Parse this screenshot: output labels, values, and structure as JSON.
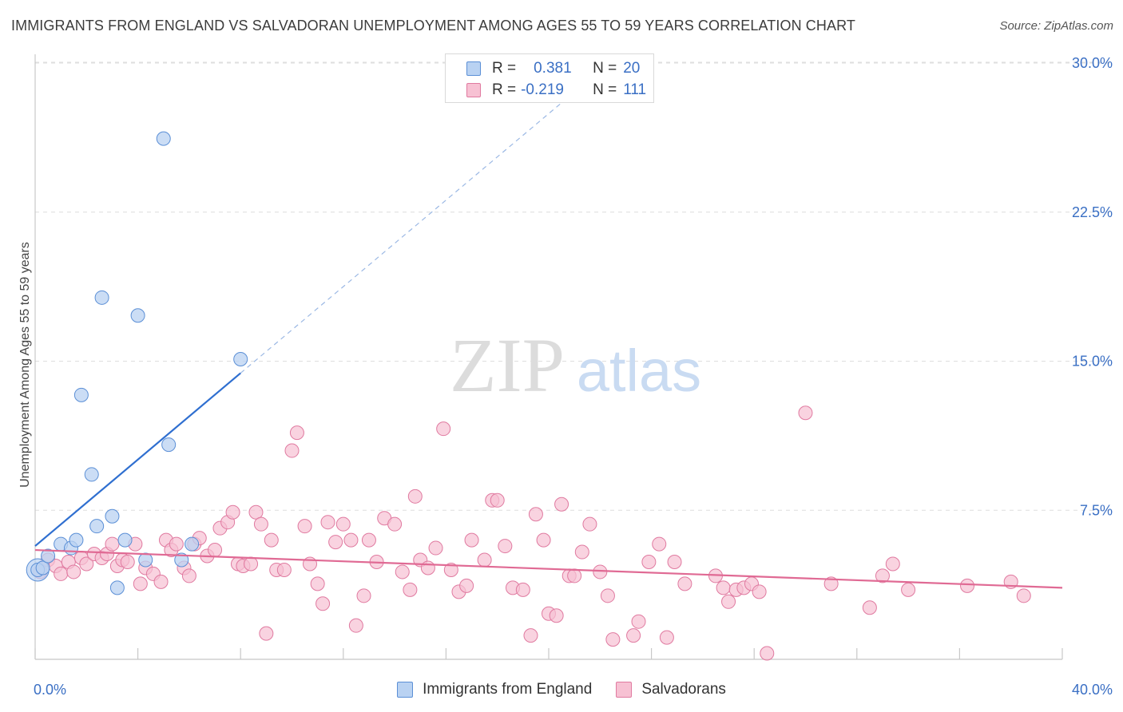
{
  "title": "IMMIGRANTS FROM ENGLAND VS SALVADORAN UNEMPLOYMENT AMONG AGES 55 TO 59 YEARS CORRELATION CHART",
  "source": "Source: ZipAtlas.com",
  "watermark": {
    "zip": "ZIP",
    "atlas": "atlas"
  },
  "legend": {
    "rows": [
      {
        "r_label": "R =",
        "r_value": "0.381",
        "n_label": "N =",
        "n_value": "20"
      },
      {
        "r_label": "R =",
        "r_value": "-0.219",
        "n_label": "N =",
        "n_value": "111"
      }
    ]
  },
  "chart_data": {
    "type": "scatter",
    "xlabel": "",
    "ylabel": "Unemployment Among Ages 55 to 59 years",
    "xlim": [
      0,
      40
    ],
    "ylim": [
      0,
      31
    ],
    "x_tick_labels": [
      "0.0%",
      "40.0%"
    ],
    "y_ticks": [
      7.5,
      15,
      22.5,
      30
    ],
    "y_tick_labels": [
      "7.5%",
      "15.0%",
      "22.5%",
      "30.0%"
    ],
    "grid": "horizontal dashed",
    "legend_position": "bottom",
    "series": [
      {
        "name": "Immigrants from England",
        "color": "#5b8fd6",
        "fill": "#b9d2f2",
        "points": [
          [
            0.1,
            4.5
          ],
          [
            0.3,
            4.6
          ],
          [
            0.5,
            5.2
          ],
          [
            1.0,
            5.8
          ],
          [
            1.4,
            5.6
          ],
          [
            1.6,
            6.0
          ],
          [
            1.8,
            13.3
          ],
          [
            2.2,
            9.3
          ],
          [
            2.4,
            6.7
          ],
          [
            2.6,
            18.2
          ],
          [
            3.0,
            7.2
          ],
          [
            3.2,
            3.6
          ],
          [
            3.5,
            6.0
          ],
          [
            4.0,
            17.3
          ],
          [
            4.3,
            5.0
          ],
          [
            5.0,
            26.2
          ],
          [
            5.2,
            10.8
          ],
          [
            5.7,
            5.0
          ],
          [
            6.1,
            5.8
          ],
          [
            8.0,
            15.1
          ]
        ],
        "trend": {
          "x0": 0,
          "y0": 5.7,
          "x1": 8.0,
          "y1": 14.4,
          "dash_to_x": 20.5,
          "dash_to_y": 28.0
        }
      },
      {
        "name": "Salvadorans",
        "color": "#e07aa0",
        "fill": "#f7c1d3",
        "points": [
          [
            0.2,
            4.4
          ],
          [
            0.5,
            5.0
          ],
          [
            0.8,
            4.7
          ],
          [
            1.0,
            4.3
          ],
          [
            1.3,
            4.9
          ],
          [
            1.5,
            4.4
          ],
          [
            1.8,
            5.1
          ],
          [
            2.0,
            4.8
          ],
          [
            2.3,
            5.3
          ],
          [
            2.6,
            5.1
          ],
          [
            2.8,
            5.3
          ],
          [
            3.0,
            5.8
          ],
          [
            3.2,
            4.7
          ],
          [
            3.4,
            5.0
          ],
          [
            3.6,
            4.9
          ],
          [
            3.9,
            5.8
          ],
          [
            4.1,
            3.8
          ],
          [
            4.3,
            4.6
          ],
          [
            4.6,
            4.3
          ],
          [
            4.9,
            3.9
          ],
          [
            5.1,
            6.0
          ],
          [
            5.3,
            5.5
          ],
          [
            5.5,
            5.8
          ],
          [
            5.8,
            4.6
          ],
          [
            6.0,
            4.2
          ],
          [
            6.2,
            5.8
          ],
          [
            6.4,
            6.1
          ],
          [
            6.7,
            5.2
          ],
          [
            7.0,
            5.5
          ],
          [
            7.2,
            6.6
          ],
          [
            7.5,
            6.9
          ],
          [
            7.7,
            7.4
          ],
          [
            7.9,
            4.8
          ],
          [
            8.1,
            4.7
          ],
          [
            8.4,
            4.8
          ],
          [
            8.6,
            7.4
          ],
          [
            8.8,
            6.8
          ],
          [
            9.0,
            1.3
          ],
          [
            9.2,
            6.0
          ],
          [
            9.4,
            4.5
          ],
          [
            9.7,
            4.5
          ],
          [
            10.0,
            10.5
          ],
          [
            10.2,
            11.4
          ],
          [
            10.5,
            6.7
          ],
          [
            10.7,
            4.8
          ],
          [
            11.0,
            3.8
          ],
          [
            11.2,
            2.8
          ],
          [
            11.4,
            6.9
          ],
          [
            11.7,
            5.9
          ],
          [
            12.0,
            6.8
          ],
          [
            12.3,
            6.0
          ],
          [
            12.5,
            1.7
          ],
          [
            12.8,
            3.2
          ],
          [
            13.0,
            6.0
          ],
          [
            13.3,
            4.9
          ],
          [
            13.6,
            7.1
          ],
          [
            14.0,
            6.8
          ],
          [
            14.3,
            4.4
          ],
          [
            14.6,
            3.5
          ],
          [
            14.8,
            8.2
          ],
          [
            15.0,
            5.0
          ],
          [
            15.3,
            4.6
          ],
          [
            15.6,
            5.6
          ],
          [
            15.9,
            11.6
          ],
          [
            16.2,
            4.5
          ],
          [
            16.5,
            3.4
          ],
          [
            16.8,
            3.7
          ],
          [
            17.0,
            6.0
          ],
          [
            17.5,
            5.0
          ],
          [
            17.8,
            8.0
          ],
          [
            18.0,
            8.0
          ],
          [
            18.3,
            5.7
          ],
          [
            18.6,
            3.6
          ],
          [
            19.0,
            3.5
          ],
          [
            19.3,
            1.2
          ],
          [
            19.5,
            7.3
          ],
          [
            19.8,
            6.0
          ],
          [
            20.0,
            2.3
          ],
          [
            20.3,
            2.2
          ],
          [
            20.5,
            7.8
          ],
          [
            20.8,
            4.2
          ],
          [
            21.0,
            4.2
          ],
          [
            21.3,
            5.4
          ],
          [
            21.6,
            6.8
          ],
          [
            22.0,
            4.4
          ],
          [
            22.3,
            3.2
          ],
          [
            22.5,
            1.0
          ],
          [
            23.3,
            1.2
          ],
          [
            23.5,
            1.9
          ],
          [
            23.9,
            4.9
          ],
          [
            24.3,
            5.8
          ],
          [
            24.6,
            1.1
          ],
          [
            24.9,
            4.9
          ],
          [
            25.3,
            3.8
          ],
          [
            26.5,
            4.2
          ],
          [
            26.8,
            3.6
          ],
          [
            27.0,
            2.9
          ],
          [
            27.3,
            3.5
          ],
          [
            27.6,
            3.6
          ],
          [
            27.9,
            3.8
          ],
          [
            28.2,
            3.4
          ],
          [
            28.5,
            0.3
          ],
          [
            30.0,
            12.4
          ],
          [
            31.0,
            3.8
          ],
          [
            32.5,
            2.6
          ],
          [
            33.0,
            4.2
          ],
          [
            33.4,
            4.8
          ],
          [
            34.0,
            3.5
          ],
          [
            36.3,
            3.7
          ],
          [
            38.0,
            3.9
          ],
          [
            38.5,
            3.2
          ]
        ],
        "trend": {
          "x0": 0,
          "y0": 5.5,
          "x1": 40,
          "y1": 3.6
        }
      }
    ]
  }
}
